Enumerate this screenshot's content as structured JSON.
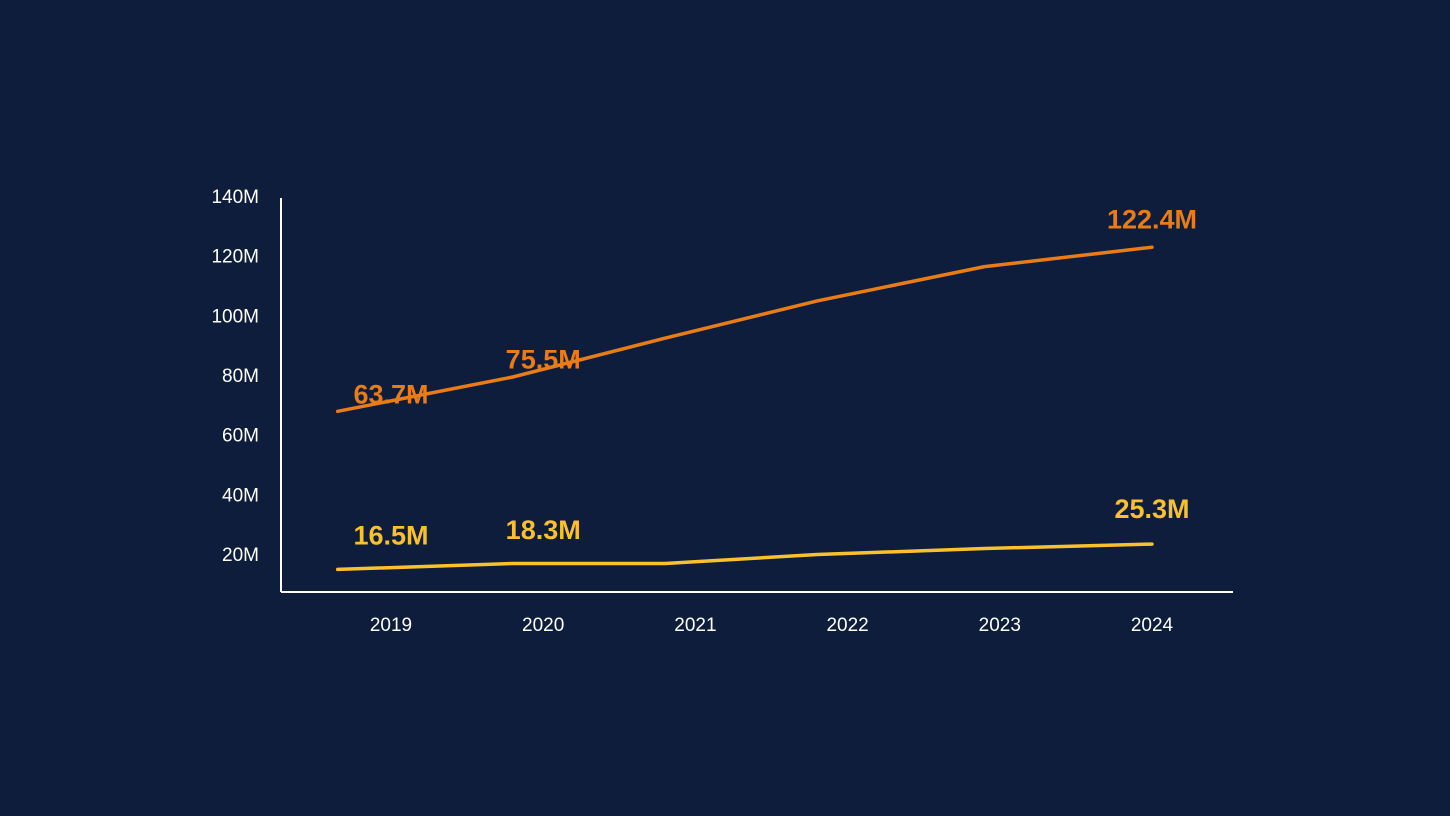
{
  "background_color": "#0d1d3b",
  "chart_data": {
    "type": "line",
    "categories": [
      "2019",
      "2020",
      "2021",
      "2022",
      "2023",
      "2024"
    ],
    "x": [
      2018.65,
      2019.8,
      2020.8,
      2021.8,
      2022.9,
      2024.0
    ],
    "ylim": [
      10,
      140
    ],
    "yticks": [
      20,
      40,
      60,
      80,
      100,
      120,
      140
    ],
    "ytick_labels": [
      "20M",
      "40M",
      "60M",
      "80M",
      "100M",
      "120M",
      "140M"
    ],
    "axis_color": "#ffffff",
    "grid": false,
    "series": [
      {
        "color": "#ea7c16",
        "values": [
          68.5,
          80,
          93,
          105.5,
          117,
          123.5
        ],
        "labels": [
          {
            "x": 2019.0,
            "value": 63.7,
            "text": "63.7M"
          },
          {
            "x": 2020.0,
            "value": 75.5,
            "text": "75.5M"
          },
          {
            "x": 2024.0,
            "value": 122.4,
            "text": "122.4M"
          }
        ]
      },
      {
        "color": "#fbc02d",
        "values": [
          15.5,
          17.5,
          17.5,
          20.5,
          22.5,
          24
        ],
        "labels": [
          {
            "x": 2019.0,
            "value": 16.5,
            "text": "16.5M"
          },
          {
            "x": 2020.0,
            "value": 18.3,
            "text": "18.3M"
          },
          {
            "x": 2024.0,
            "value": 25.3,
            "text": "25.3M"
          }
        ]
      }
    ]
  }
}
